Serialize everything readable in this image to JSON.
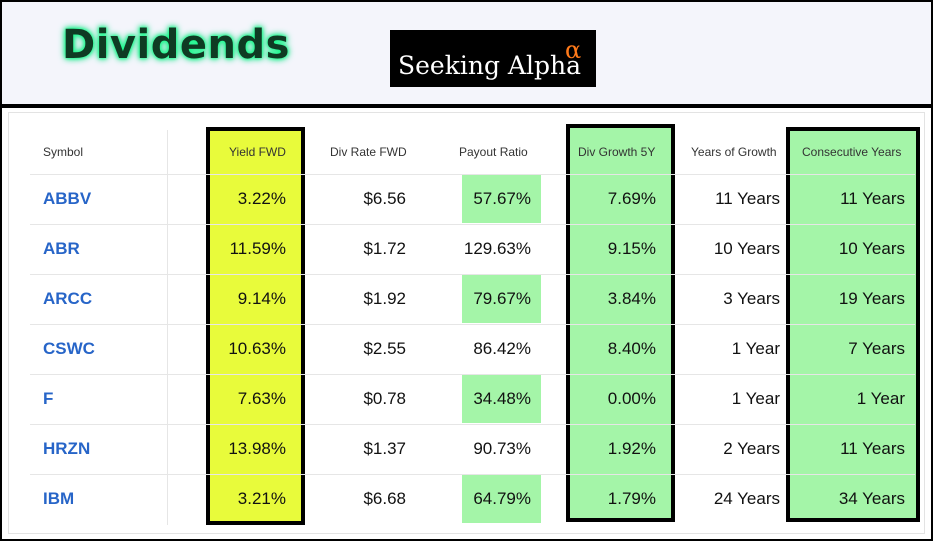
{
  "header": {
    "title": "Dividends",
    "logo_text": "Seeking Alpha",
    "logo_alpha": "α"
  },
  "table": {
    "columns": [
      "Symbol",
      "Yield FWD",
      "Div Rate FWD",
      "Payout Ratio",
      "Div Growth 5Y",
      "Years of Growth",
      "Consecutive Years"
    ],
    "rows": [
      {
        "symbol": "ABBV",
        "yield": "3.22%",
        "rate": "$6.56",
        "payout": "57.67%",
        "growth": "7.69%",
        "years": "11 Years",
        "consecutive": "11 Years",
        "payout_highlight": true
      },
      {
        "symbol": "ABR",
        "yield": "11.59%",
        "rate": "$1.72",
        "payout": "129.63%",
        "growth": "9.15%",
        "years": "10 Years",
        "consecutive": "10 Years",
        "payout_highlight": false
      },
      {
        "symbol": "ARCC",
        "yield": "9.14%",
        "rate": "$1.92",
        "payout": "79.67%",
        "growth": "3.84%",
        "years": "3 Years",
        "consecutive": "19 Years",
        "payout_highlight": true
      },
      {
        "symbol": "CSWC",
        "yield": "10.63%",
        "rate": "$2.55",
        "payout": "86.42%",
        "growth": "8.40%",
        "years": "1 Year",
        "consecutive": "7 Years",
        "payout_highlight": false
      },
      {
        "symbol": "F",
        "yield": "7.63%",
        "rate": "$0.78",
        "payout": "34.48%",
        "growth": "0.00%",
        "years": "1 Year",
        "consecutive": "1 Year",
        "payout_highlight": true
      },
      {
        "symbol": "HRZN",
        "yield": "13.98%",
        "rate": "$1.37",
        "payout": "90.73%",
        "growth": "1.92%",
        "years": "2 Years",
        "consecutive": "11 Years",
        "payout_highlight": false
      },
      {
        "symbol": "IBM",
        "yield": "3.21%",
        "rate": "$6.68",
        "payout": "64.79%",
        "growth": "1.79%",
        "years": "24 Years",
        "consecutive": "34 Years",
        "payout_highlight": true
      }
    ]
  },
  "colors": {
    "yield_highlight": "#e8fb3b",
    "green_highlight": "#a4f5a8",
    "symbol_link": "#2765c8"
  }
}
